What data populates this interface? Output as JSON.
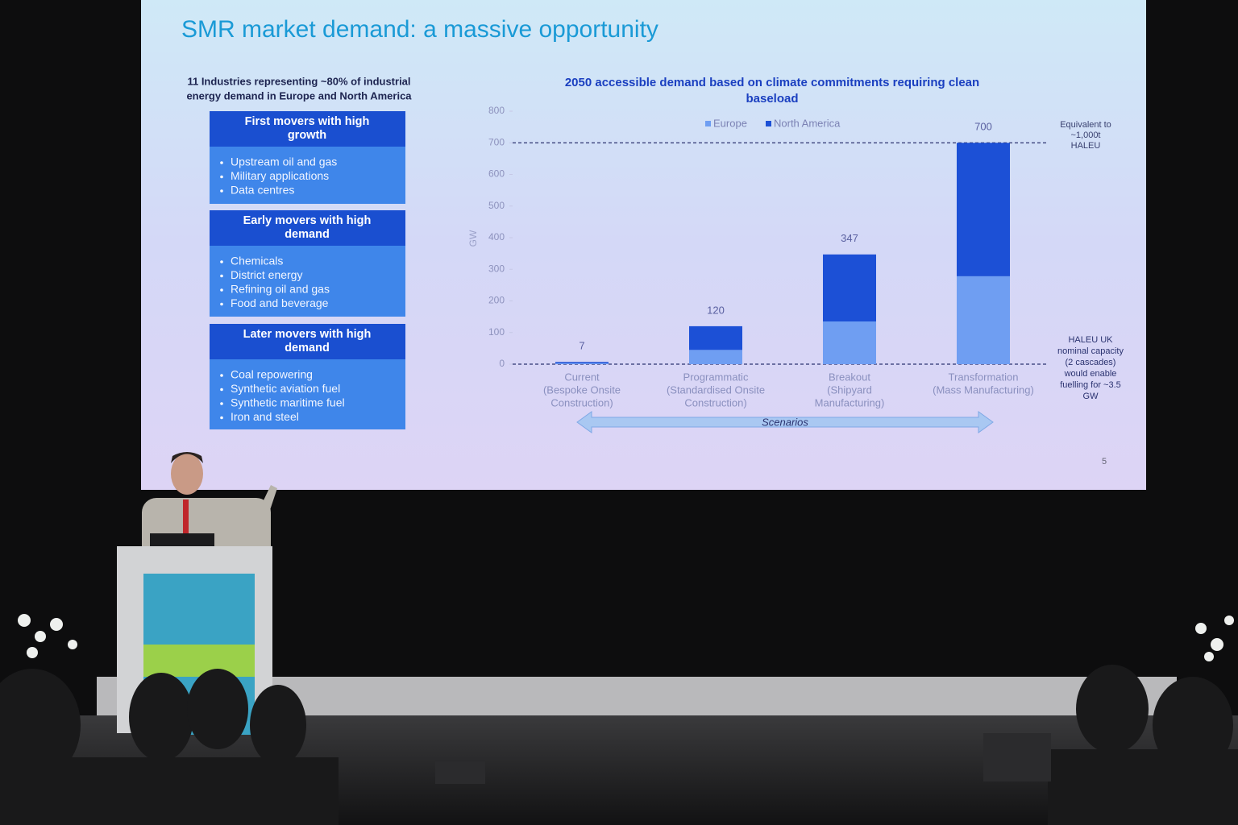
{
  "slide": {
    "title": "SMR market demand: a massive opportunity",
    "page_number": "5"
  },
  "left_panel": {
    "intro": [
      "11 Industries representing ~80% of industrial",
      "energy demand in Europe and North America"
    ],
    "groups": [
      {
        "heading": [
          "First movers with high",
          "growth"
        ],
        "items": [
          "Upstream oil and gas",
          "Military applications",
          "Data centres"
        ]
      },
      {
        "heading": [
          "Early movers with high",
          "demand"
        ],
        "items": [
          "Chemicals",
          "District energy",
          "Refining oil and gas",
          "Food and beverage"
        ]
      },
      {
        "heading": [
          "Later movers with high",
          "demand"
        ],
        "items": [
          "Coal repowering",
          "Synthetic aviation fuel",
          "Synthetic maritime fuel",
          "Iron and steel"
        ]
      }
    ]
  },
  "chart_data": {
    "type": "bar",
    "stacked": true,
    "title": [
      "2050 accessible demand based on climate commitments requiring clean",
      "baseload"
    ],
    "y_label": "GW",
    "categories": [
      [
        "Current",
        "(Bespoke Onsite",
        "Construction)"
      ],
      [
        "Programmatic",
        "(Standardised Onsite",
        "Construction)"
      ],
      [
        "Breakout",
        "(Shipyard",
        "Manufacturing)"
      ],
      [
        "Transformation",
        "(Mass Manufacturing)"
      ]
    ],
    "series": [
      {
        "name": "Europe",
        "color": "#6f9ef2",
        "values": [
          3,
          45,
          135,
          278
        ]
      },
      {
        "name": "North America",
        "color": "#1c50d6",
        "values": [
          4,
          75,
          212,
          422
        ]
      }
    ],
    "totals": [
      7,
      120,
      347,
      700
    ],
    "ylim": [
      0,
      800
    ],
    "yticks": [
      0,
      100,
      200,
      300,
      400,
      500,
      600,
      700,
      800
    ],
    "grid": false,
    "reference_lines": [
      700,
      0
    ],
    "annotations": [
      {
        "lines": [
          "Equivalent to",
          "~1,000t",
          "HALEU"
        ]
      },
      {
        "lines": [
          "HALEU UK",
          "nominal capacity",
          "(2 cascades)",
          "would enable",
          "fuelling for ~3.5",
          "GW"
        ]
      }
    ],
    "scenario_label": "Scenarios"
  }
}
